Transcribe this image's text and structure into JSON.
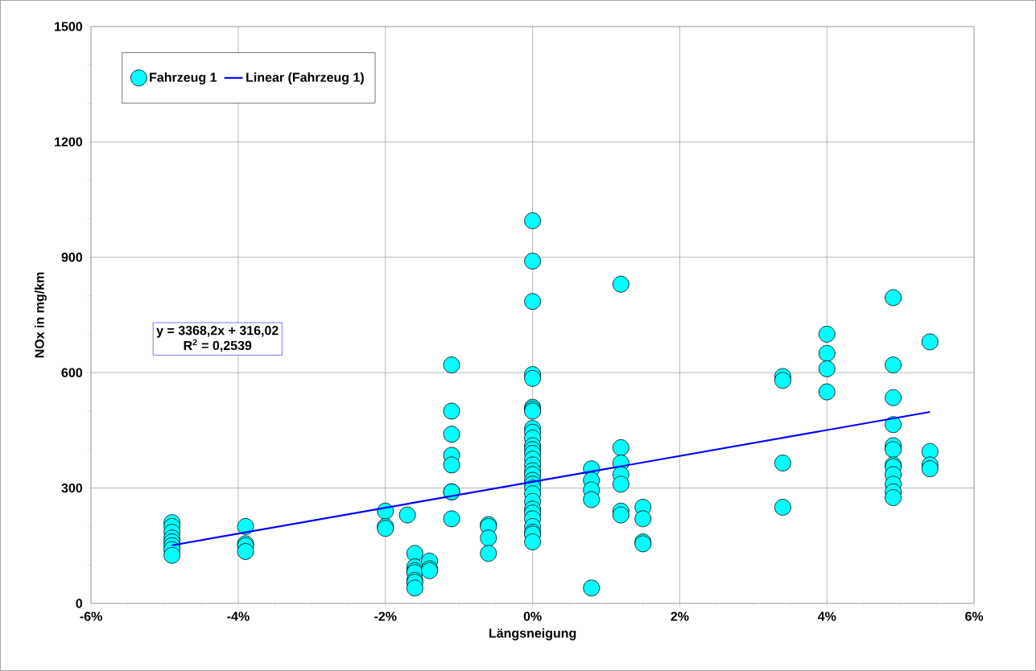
{
  "chart_data": {
    "type": "scatter",
    "xlabel": "Längsneigung",
    "ylabel": "NOx in mg/km",
    "xlim": [
      -6,
      6
    ],
    "ylim": [
      0,
      1500
    ],
    "xticks": [
      {
        "value": -6,
        "label": "-6%"
      },
      {
        "value": -4,
        "label": "-4%"
      },
      {
        "value": -2,
        "label": "-2%"
      },
      {
        "value": 0,
        "label": "0%"
      },
      {
        "value": 2,
        "label": "2%"
      },
      {
        "value": 4,
        "label": "4%"
      },
      {
        "value": 6,
        "label": "6%"
      }
    ],
    "yticks": [
      0,
      300,
      600,
      900,
      1200,
      1500
    ],
    "grid": true,
    "legend": "top left",
    "annotations": [
      "y = 3368,2x + 316,02",
      "R$^{2}$ = 0,2539"
    ],
    "series": [
      {
        "name": "Fahrzeug 1",
        "marker": "circle",
        "color": "#00ffff",
        "x": [
          -4.9,
          -4.9,
          -4.9,
          -4.9,
          -4.9,
          -4.9,
          -4.9,
          -4.9,
          -3.9,
          -3.9,
          -3.9,
          -3.9,
          -2.0,
          -2.0,
          -2.0,
          -1.7,
          -1.6,
          -1.6,
          -1.6,
          -1.6,
          -1.6,
          -1.6,
          -1.6,
          -1.4,
          -1.4,
          -1.4,
          -1.1,
          -1.1,
          -1.1,
          -1.1,
          -1.1,
          -1.1,
          -1.1,
          -1.1,
          -0.6,
          -0.6,
          -0.6,
          -0.6,
          0,
          0,
          0,
          0,
          0,
          0,
          0,
          0,
          0,
          0,
          0,
          0,
          0,
          0,
          0,
          0,
          0,
          0,
          0,
          0,
          0,
          0,
          0,
          0,
          0,
          0,
          0,
          0,
          0,
          0,
          0.8,
          0.8,
          0.8,
          0.8,
          0.8,
          1.2,
          1.2,
          1.2,
          1.2,
          1.2,
          1.2,
          1.2,
          1.5,
          1.5,
          1.5,
          1.5,
          3.4,
          3.4,
          3.4,
          3.4,
          4.0,
          4.0,
          4.0,
          4.0,
          4.9,
          4.9,
          4.9,
          4.9,
          4.9,
          4.9,
          4.9,
          4.9,
          4.9,
          4.9,
          4.9,
          4.9,
          5.4,
          5.4,
          5.4,
          5.4
        ],
        "values": [
          210,
          200,
          185,
          170,
          160,
          150,
          140,
          125,
          200,
          155,
          150,
          135,
          240,
          200,
          195,
          230,
          130,
          95,
          85,
          80,
          60,
          55,
          40,
          110,
          90,
          85,
          620,
          500,
          440,
          385,
          360,
          290,
          290,
          220,
          205,
          200,
          170,
          130,
          995,
          890,
          785,
          595,
          585,
          510,
          505,
          500,
          455,
          445,
          430,
          410,
          400,
          390,
          375,
          360,
          345,
          335,
          320,
          310,
          300,
          285,
          265,
          245,
          235,
          220,
          200,
          185,
          180,
          160,
          350,
          320,
          295,
          270,
          40,
          830,
          405,
          365,
          335,
          310,
          240,
          230,
          250,
          220,
          160,
          155,
          590,
          580,
          365,
          250,
          700,
          650,
          610,
          550,
          795,
          620,
          535,
          465,
          410,
          400,
          360,
          355,
          335,
          310,
          290,
          275,
          680,
          395,
          360,
          350
        ]
      },
      {
        "name": "Linear (Fahrzeug 1)",
        "type": "line",
        "marker": "none",
        "line_style": "solid",
        "color": "#0000ff",
        "x": [
          -4.9,
          5.4
        ],
        "values": [
          151,
          498
        ]
      }
    ]
  }
}
